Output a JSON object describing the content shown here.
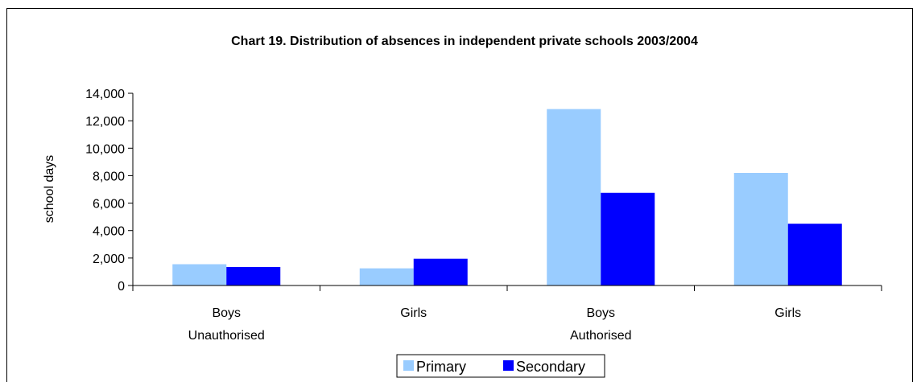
{
  "chart_data": {
    "type": "bar",
    "title": "Chart 19.  Distribution of absences in independent private schools 2003/2004",
    "ylabel": "school days",
    "xlabel": "",
    "ylim": [
      0,
      14000
    ],
    "y_ticks": [
      "0",
      "2,000",
      "4,000",
      "6,000",
      "8,000",
      "10,000",
      "12,000",
      "14,000"
    ],
    "y_tick_values": [
      0,
      2000,
      4000,
      6000,
      8000,
      10000,
      12000,
      14000
    ],
    "categories": [
      "Boys",
      "Girls",
      "Boys",
      "Girls"
    ],
    "category_groups": [
      "Unauthorised",
      "",
      "Authorised",
      ""
    ],
    "series": [
      {
        "name": "Primary",
        "color": "#99ccff",
        "values": [
          1550,
          1250,
          12850,
          8200
        ]
      },
      {
        "name": "Secondary",
        "color": "#0000ff",
        "values": [
          1350,
          1950,
          6750,
          4500
        ]
      }
    ],
    "legend_position": "bottom",
    "grid": false
  }
}
